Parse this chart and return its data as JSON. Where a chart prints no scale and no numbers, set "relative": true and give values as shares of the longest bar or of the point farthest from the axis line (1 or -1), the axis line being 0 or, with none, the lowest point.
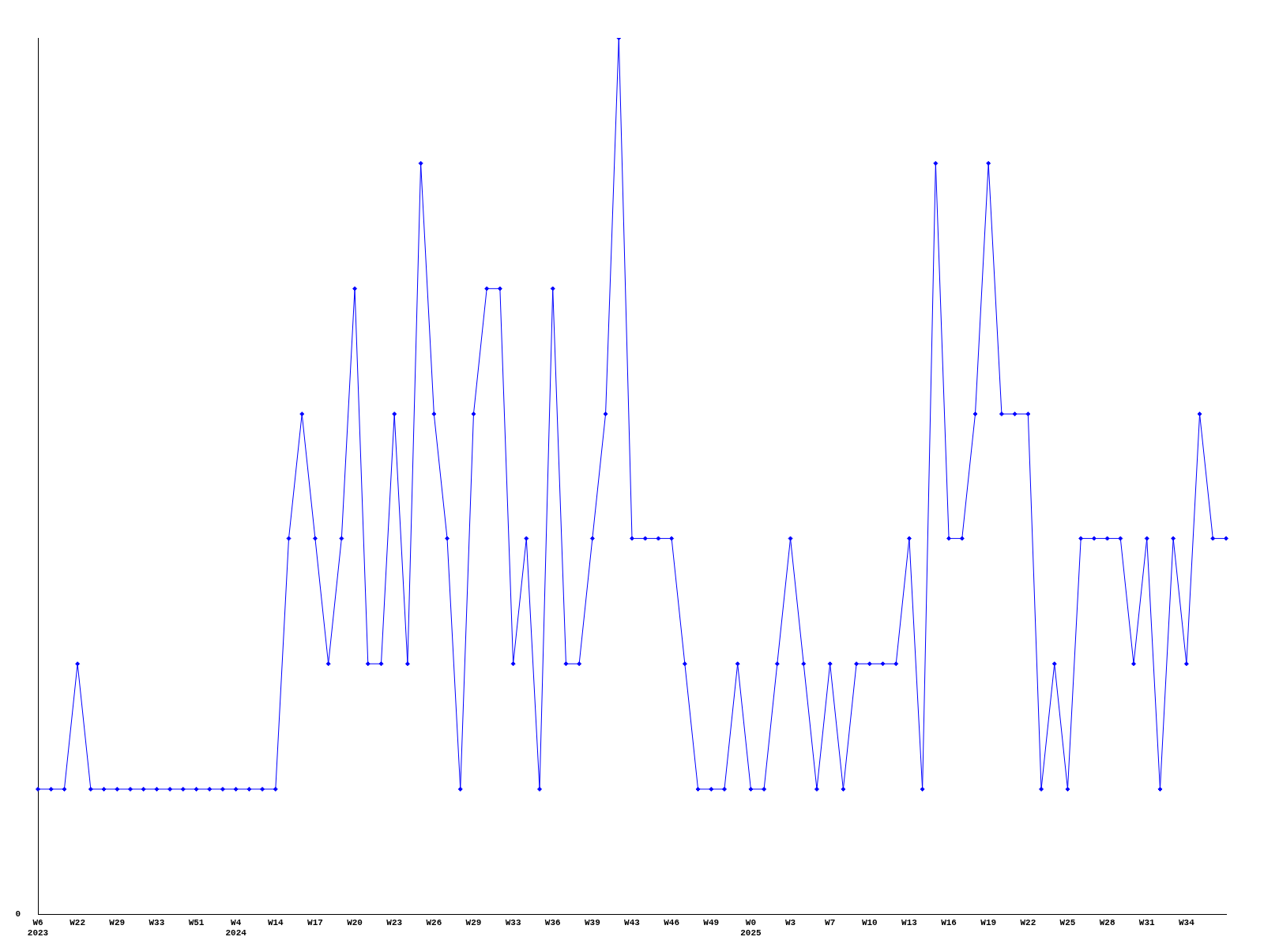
{
  "chart_data": {
    "type": "line",
    "relative": true,
    "marker": "diamond",
    "grid": false,
    "legend": false,
    "categories": [
      "W6\n2023",
      null,
      null,
      "W22",
      null,
      null,
      "W29",
      null,
      null,
      "W33",
      null,
      null,
      "W51",
      null,
      null,
      "W4\n2024",
      null,
      null,
      "W14",
      null,
      null,
      "W17",
      null,
      null,
      "W20",
      null,
      null,
      "W23",
      null,
      null,
      "W26",
      null,
      null,
      "W29",
      null,
      null,
      "W33",
      null,
      null,
      "W36",
      null,
      null,
      "W39",
      null,
      null,
      "W43",
      null,
      null,
      "W46",
      null,
      null,
      "W49",
      null,
      null,
      "W0\n2025",
      null,
      null,
      "W3",
      null,
      null,
      "W7",
      null,
      null,
      "W10",
      null,
      null,
      "W13",
      null,
      null,
      "W16",
      null,
      null,
      "W19",
      null,
      null,
      "W22",
      null,
      null,
      "W25",
      null,
      null,
      "W28",
      null,
      null,
      "W31",
      null,
      null,
      "W34",
      null,
      null,
      null
    ],
    "series": [
      {
        "color": "#0000ff",
        "values": [
          0.143,
          0.143,
          0.143,
          0.286,
          0.143,
          0.143,
          0.143,
          0.143,
          0.143,
          0.143,
          0.143,
          0.143,
          0.143,
          0.143,
          0.143,
          0.143,
          0.143,
          0.143,
          0.143,
          0.429,
          0.571,
          0.429,
          0.286,
          0.429,
          0.714,
          0.286,
          0.286,
          0.571,
          0.286,
          0.857,
          0.571,
          0.429,
          0.143,
          0.571,
          0.714,
          0.714,
          0.286,
          0.429,
          0.143,
          0.714,
          0.286,
          0.286,
          0.429,
          0.571,
          1,
          0.429,
          0.429,
          0.429,
          0.429,
          0.286,
          0.143,
          0.143,
          0.143,
          0.286,
          0.143,
          0.143,
          0.286,
          0.429,
          0.286,
          0.143,
          0.286,
          0.143,
          0.286,
          0.286,
          0.286,
          0.286,
          0.429,
          0.143,
          0.857,
          0.429,
          0.429,
          0.571,
          0.857,
          0.571,
          0.571,
          0.571,
          0.143,
          0.286,
          0.143,
          0.429,
          0.429,
          0.429,
          0.429,
          0.286,
          0.429,
          0.143,
          0.429,
          0.286,
          0.571,
          0.429,
          0.429
        ]
      }
    ],
    "annotations": [
      "0"
    ]
  }
}
